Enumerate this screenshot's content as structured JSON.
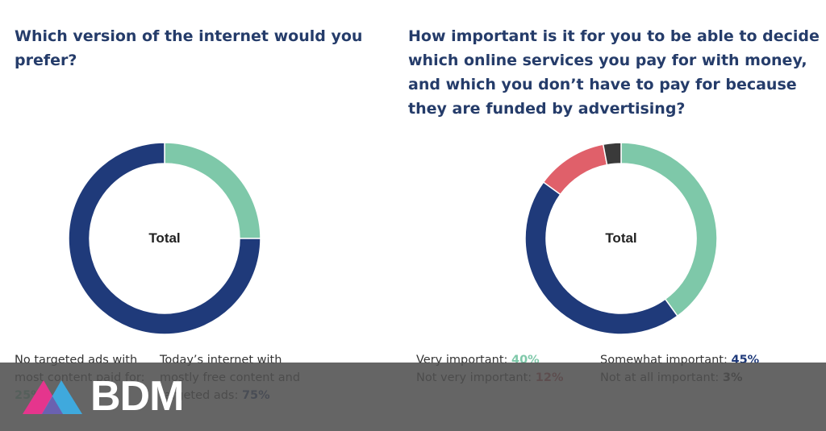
{
  "brand": {
    "name": "BDM",
    "colors": {
      "pink": "#e5358d",
      "blue": "#3fa9dd",
      "overlay": "#595959"
    }
  },
  "colors": {
    "title": "#253c6a",
    "mint": "#7ec8a9",
    "navy": "#1f3a7a",
    "red": "#e0606a",
    "dark": "#3a3a3a"
  },
  "left": {
    "title": "Which version of the internet would you prefer?",
    "center_label": "Total",
    "legend": [
      {
        "label": "No targeted ads with most content paid for:",
        "value": "25%"
      },
      {
        "label": "Today’s internet with mostly free content and targeted ads:",
        "value": "75%"
      }
    ]
  },
  "right": {
    "title": "How important is it for you to be able to decide which online services you pay for with money, and which you don’t have to pay for because they are funded by advertising?",
    "center_label": "Total",
    "legend": [
      {
        "label": "Very important:",
        "value": "40%"
      },
      {
        "label": "Somewhat important:",
        "value": "45%"
      },
      {
        "label": "Not very important:",
        "value": "12%"
      },
      {
        "label": "Not at all important:",
        "value": "3%"
      }
    ]
  },
  "chart_data": [
    {
      "type": "pie",
      "variant": "donut",
      "title": "Which version of the internet would you prefer?",
      "center_label": "Total",
      "categories": [
        "No targeted ads with most content paid for",
        "Today’s internet with mostly free content and targeted ads"
      ],
      "values": [
        25,
        75
      ],
      "colors": [
        "#7ec8a9",
        "#1f3a7a"
      ],
      "unit": "%",
      "legend_position": "bottom"
    },
    {
      "type": "pie",
      "variant": "donut",
      "title": "How important is it for you to be able to decide which online services you pay for with money, and which you don’t have to pay for because they are funded by advertising?",
      "center_label": "Total",
      "categories": [
        "Very important",
        "Somewhat important",
        "Not very important",
        "Not at all important"
      ],
      "values": [
        40,
        45,
        12,
        3
      ],
      "colors": [
        "#7ec8a9",
        "#1f3a7a",
        "#e0606a",
        "#3a3a3a"
      ],
      "unit": "%",
      "legend_position": "bottom"
    }
  ]
}
